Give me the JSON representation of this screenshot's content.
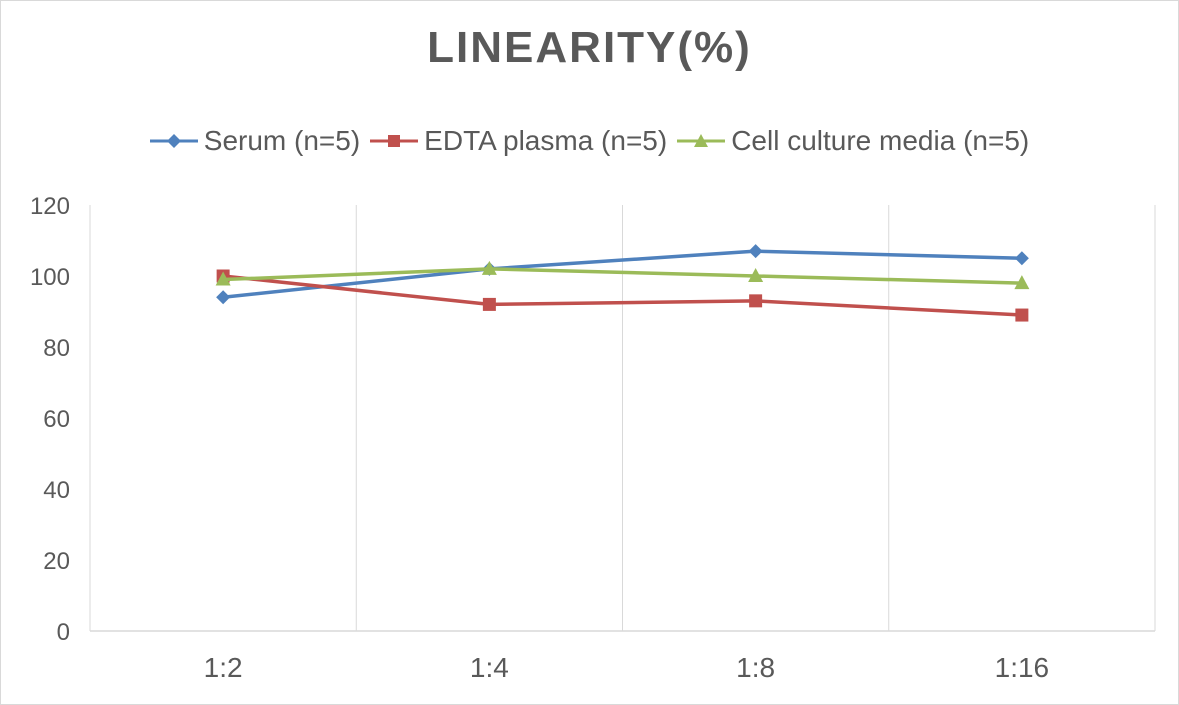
{
  "chart_data": {
    "type": "line",
    "title": "LINEARITY(%)",
    "xlabel": "",
    "ylabel": "",
    "categories": [
      "1:2",
      "1:4",
      "1:8",
      "1:16"
    ],
    "ylim": [
      0,
      120
    ],
    "yticks": [
      0,
      20,
      40,
      60,
      80,
      100,
      120
    ],
    "grid": "vertical",
    "legend_position": "top",
    "series": [
      {
        "name": "Serum (n=5)",
        "color": "#4f81bd",
        "marker": "diamond",
        "values": [
          94,
          102,
          107,
          105
        ]
      },
      {
        "name": "EDTA plasma (n=5)",
        "color": "#c0504d",
        "marker": "square",
        "values": [
          100,
          92,
          93,
          89
        ]
      },
      {
        "name": "Cell culture media (n=5)",
        "color": "#9bbb59",
        "marker": "triangle",
        "values": [
          99,
          102,
          100,
          98
        ]
      }
    ]
  }
}
